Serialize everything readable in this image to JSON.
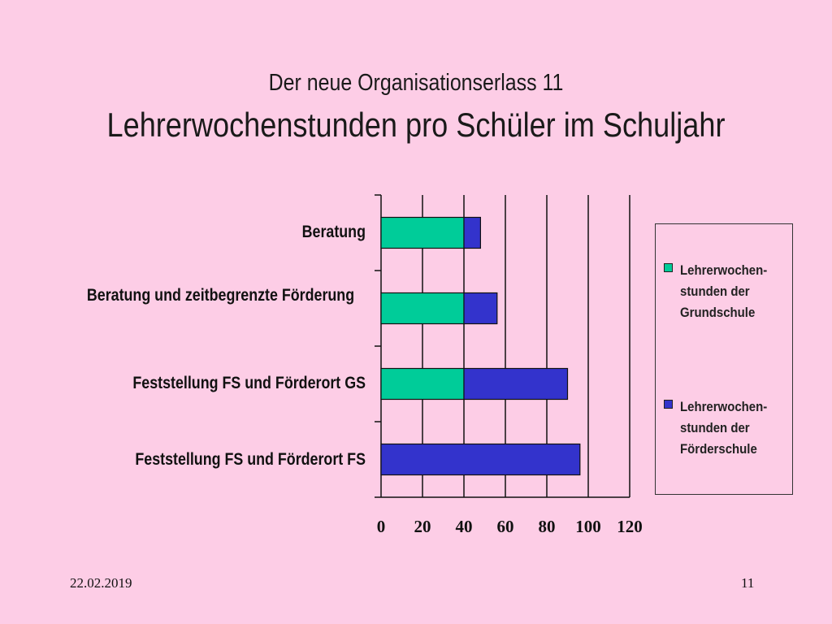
{
  "slide": {
    "subtitle": "Der neue Organisationserlass 11",
    "title": "Lehrerwochenstunden pro Schüler im Schuljahr",
    "date": "22.02.2019",
    "page_number": "11"
  },
  "chart_data": {
    "type": "bar",
    "orientation": "horizontal",
    "stacked": true,
    "categories": [
      "Beratung",
      "Beratung und zeitbegrenzte Förderung",
      "Feststellung FS und Förderort GS",
      "Feststellung FS und Förderort FS"
    ],
    "series": [
      {
        "name": "Lehrerwochen-stunden der Grundschule",
        "color": "#00cc99",
        "values": [
          40,
          40,
          40,
          0
        ]
      },
      {
        "name": "Lehrerwochen-stunden der Förderschule",
        "color": "#3333cc",
        "values": [
          8,
          16,
          50,
          96
        ]
      }
    ],
    "xlim": [
      0,
      120
    ],
    "xticks": [
      "0",
      "20",
      "40",
      "60",
      "80",
      "100",
      "120"
    ],
    "grid": true,
    "legend": "right",
    "title": "",
    "xlabel": "",
    "ylabel": ""
  }
}
